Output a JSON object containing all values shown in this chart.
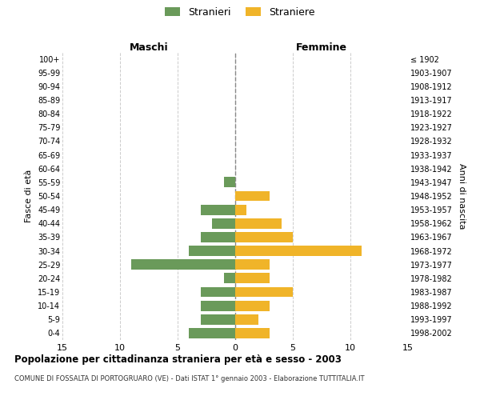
{
  "age_groups": [
    "100+",
    "95-99",
    "90-94",
    "85-89",
    "80-84",
    "75-79",
    "70-74",
    "65-69",
    "60-64",
    "55-59",
    "50-54",
    "45-49",
    "40-44",
    "35-39",
    "30-34",
    "25-29",
    "20-24",
    "15-19",
    "10-14",
    "5-9",
    "0-4"
  ],
  "birth_years": [
    "≤ 1902",
    "1903-1907",
    "1908-1912",
    "1913-1917",
    "1918-1922",
    "1923-1927",
    "1928-1932",
    "1933-1937",
    "1938-1942",
    "1943-1947",
    "1948-1952",
    "1953-1957",
    "1958-1962",
    "1963-1967",
    "1968-1972",
    "1973-1977",
    "1978-1982",
    "1983-1987",
    "1988-1992",
    "1993-1997",
    "1998-2002"
  ],
  "maschi": [
    0,
    0,
    0,
    0,
    0,
    0,
    0,
    0,
    0,
    1,
    0,
    3,
    2,
    3,
    4,
    9,
    1,
    3,
    3,
    3,
    4
  ],
  "femmine": [
    0,
    0,
    0,
    0,
    0,
    0,
    0,
    0,
    0,
    0,
    3,
    1,
    4,
    5,
    11,
    3,
    3,
    5,
    3,
    2,
    3
  ],
  "male_color": "#6a9a5a",
  "female_color": "#f0b429",
  "xlim": 15,
  "title": "Popolazione per cittadinanza straniera per età e sesso - 2003",
  "subtitle": "COMUNE DI FOSSALTA DI PORTOGRUARO (VE) - Dati ISTAT 1° gennaio 2003 - Elaborazione TUTTITALIA.IT",
  "ylabel_left": "Fasce di età",
  "ylabel_right": "Anni di nascita",
  "maschi_label": "Maschi",
  "femmine_label": "Femmine",
  "legend_stranieri": "Stranieri",
  "legend_straniere": "Straniere",
  "background_color": "#ffffff",
  "grid_color": "#cccccc",
  "bar_height": 0.75
}
